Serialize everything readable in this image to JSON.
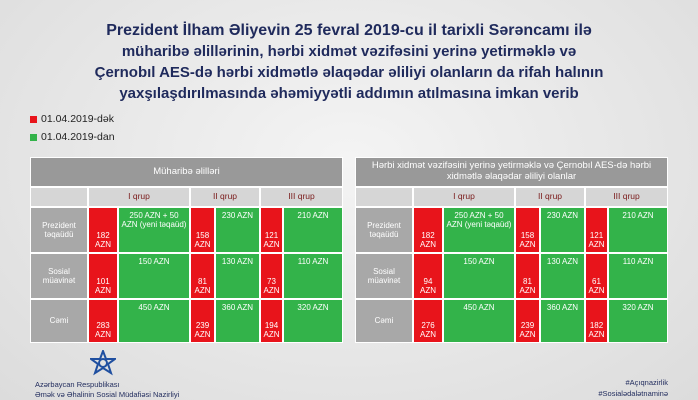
{
  "header": {
    "title_lines": [
      "Prezident İlham Əliyevin 25 fevral 2019-cu il tarixli Sərəncamı ilə",
      "müharibə əlillərinin, hərbi xidmət vəzifəsini yerinə yetirməklə və",
      "Çernobıl AES-də hərbi xidmətlə əlaqədar əliliyi olanların da rifah halının",
      "yaxşılaşdırılmasında əhəmiyyətli addımın atılmasına imkan verib"
    ]
  },
  "legend": [
    {
      "label": "01.04.2019-dək",
      "color": "#e8141b"
    },
    {
      "label": "01.04.2019-dan",
      "color": "#33b34a"
    }
  ],
  "tables": [
    {
      "title": "Müharibə əlilləri",
      "groups": [
        "I qrup",
        "II qrup",
        "III qrup"
      ],
      "rows": [
        {
          "label": "Prezident təqaüdü",
          "cells": [
            [
              "182 AZN",
              "250 AZN + 50 AZN (yeni təqaüd)"
            ],
            [
              "158 AZN",
              "230 AZN"
            ],
            [
              "121 AZN",
              "210 AZN"
            ]
          ]
        },
        {
          "label": "Sosial müavinət",
          "cells": [
            [
              "101 AZN",
              "150 AZN"
            ],
            [
              "81 AZN",
              "130 AZN"
            ],
            [
              "73 AZN",
              "110 AZN"
            ]
          ]
        },
        {
          "label": "Cəmi",
          "cells": [
            [
              "283 AZN",
              "450 AZN"
            ],
            [
              "239 AZN",
              "360 AZN"
            ],
            [
              "194 AZN",
              "320 AZN"
            ]
          ]
        }
      ]
    },
    {
      "title": "Hərbi xidmət vəzifəsini yerinə yetirməklə və Çernobıl AES-də hərbi xidmətlə əlaqədar əliliyi olanlar",
      "groups": [
        "I qrup",
        "II qrup",
        "III qrup"
      ],
      "rows": [
        {
          "label": "Prezident təqaüdü",
          "cells": [
            [
              "182 AZN",
              "250 AZN + 50 AZN (yeni təqaüd)"
            ],
            [
              "158 AZN",
              "230 AZN"
            ],
            [
              "121 AZN",
              "210 AZN"
            ]
          ]
        },
        {
          "label": "Sosial müavinət",
          "cells": [
            [
              "94 AZN",
              "150 AZN"
            ],
            [
              "81 AZN",
              "130 AZN"
            ],
            [
              "61 AZN",
              "110 AZN"
            ]
          ]
        },
        {
          "label": "Cəmi",
          "cells": [
            [
              "276 AZN",
              "450 AZN"
            ],
            [
              "239 AZN",
              "360 AZN"
            ],
            [
              "182 AZN",
              "320 AZN"
            ]
          ]
        }
      ]
    }
  ],
  "footer": {
    "org_lines": [
      "Azərbaycan Respublikası",
      "Əmək və Əhalinin Sosial Müdafiəsi Nazirliyi"
    ],
    "hashtags": [
      "#Açıqnazirlik",
      "#Sosialədalətnaminə"
    ]
  }
}
